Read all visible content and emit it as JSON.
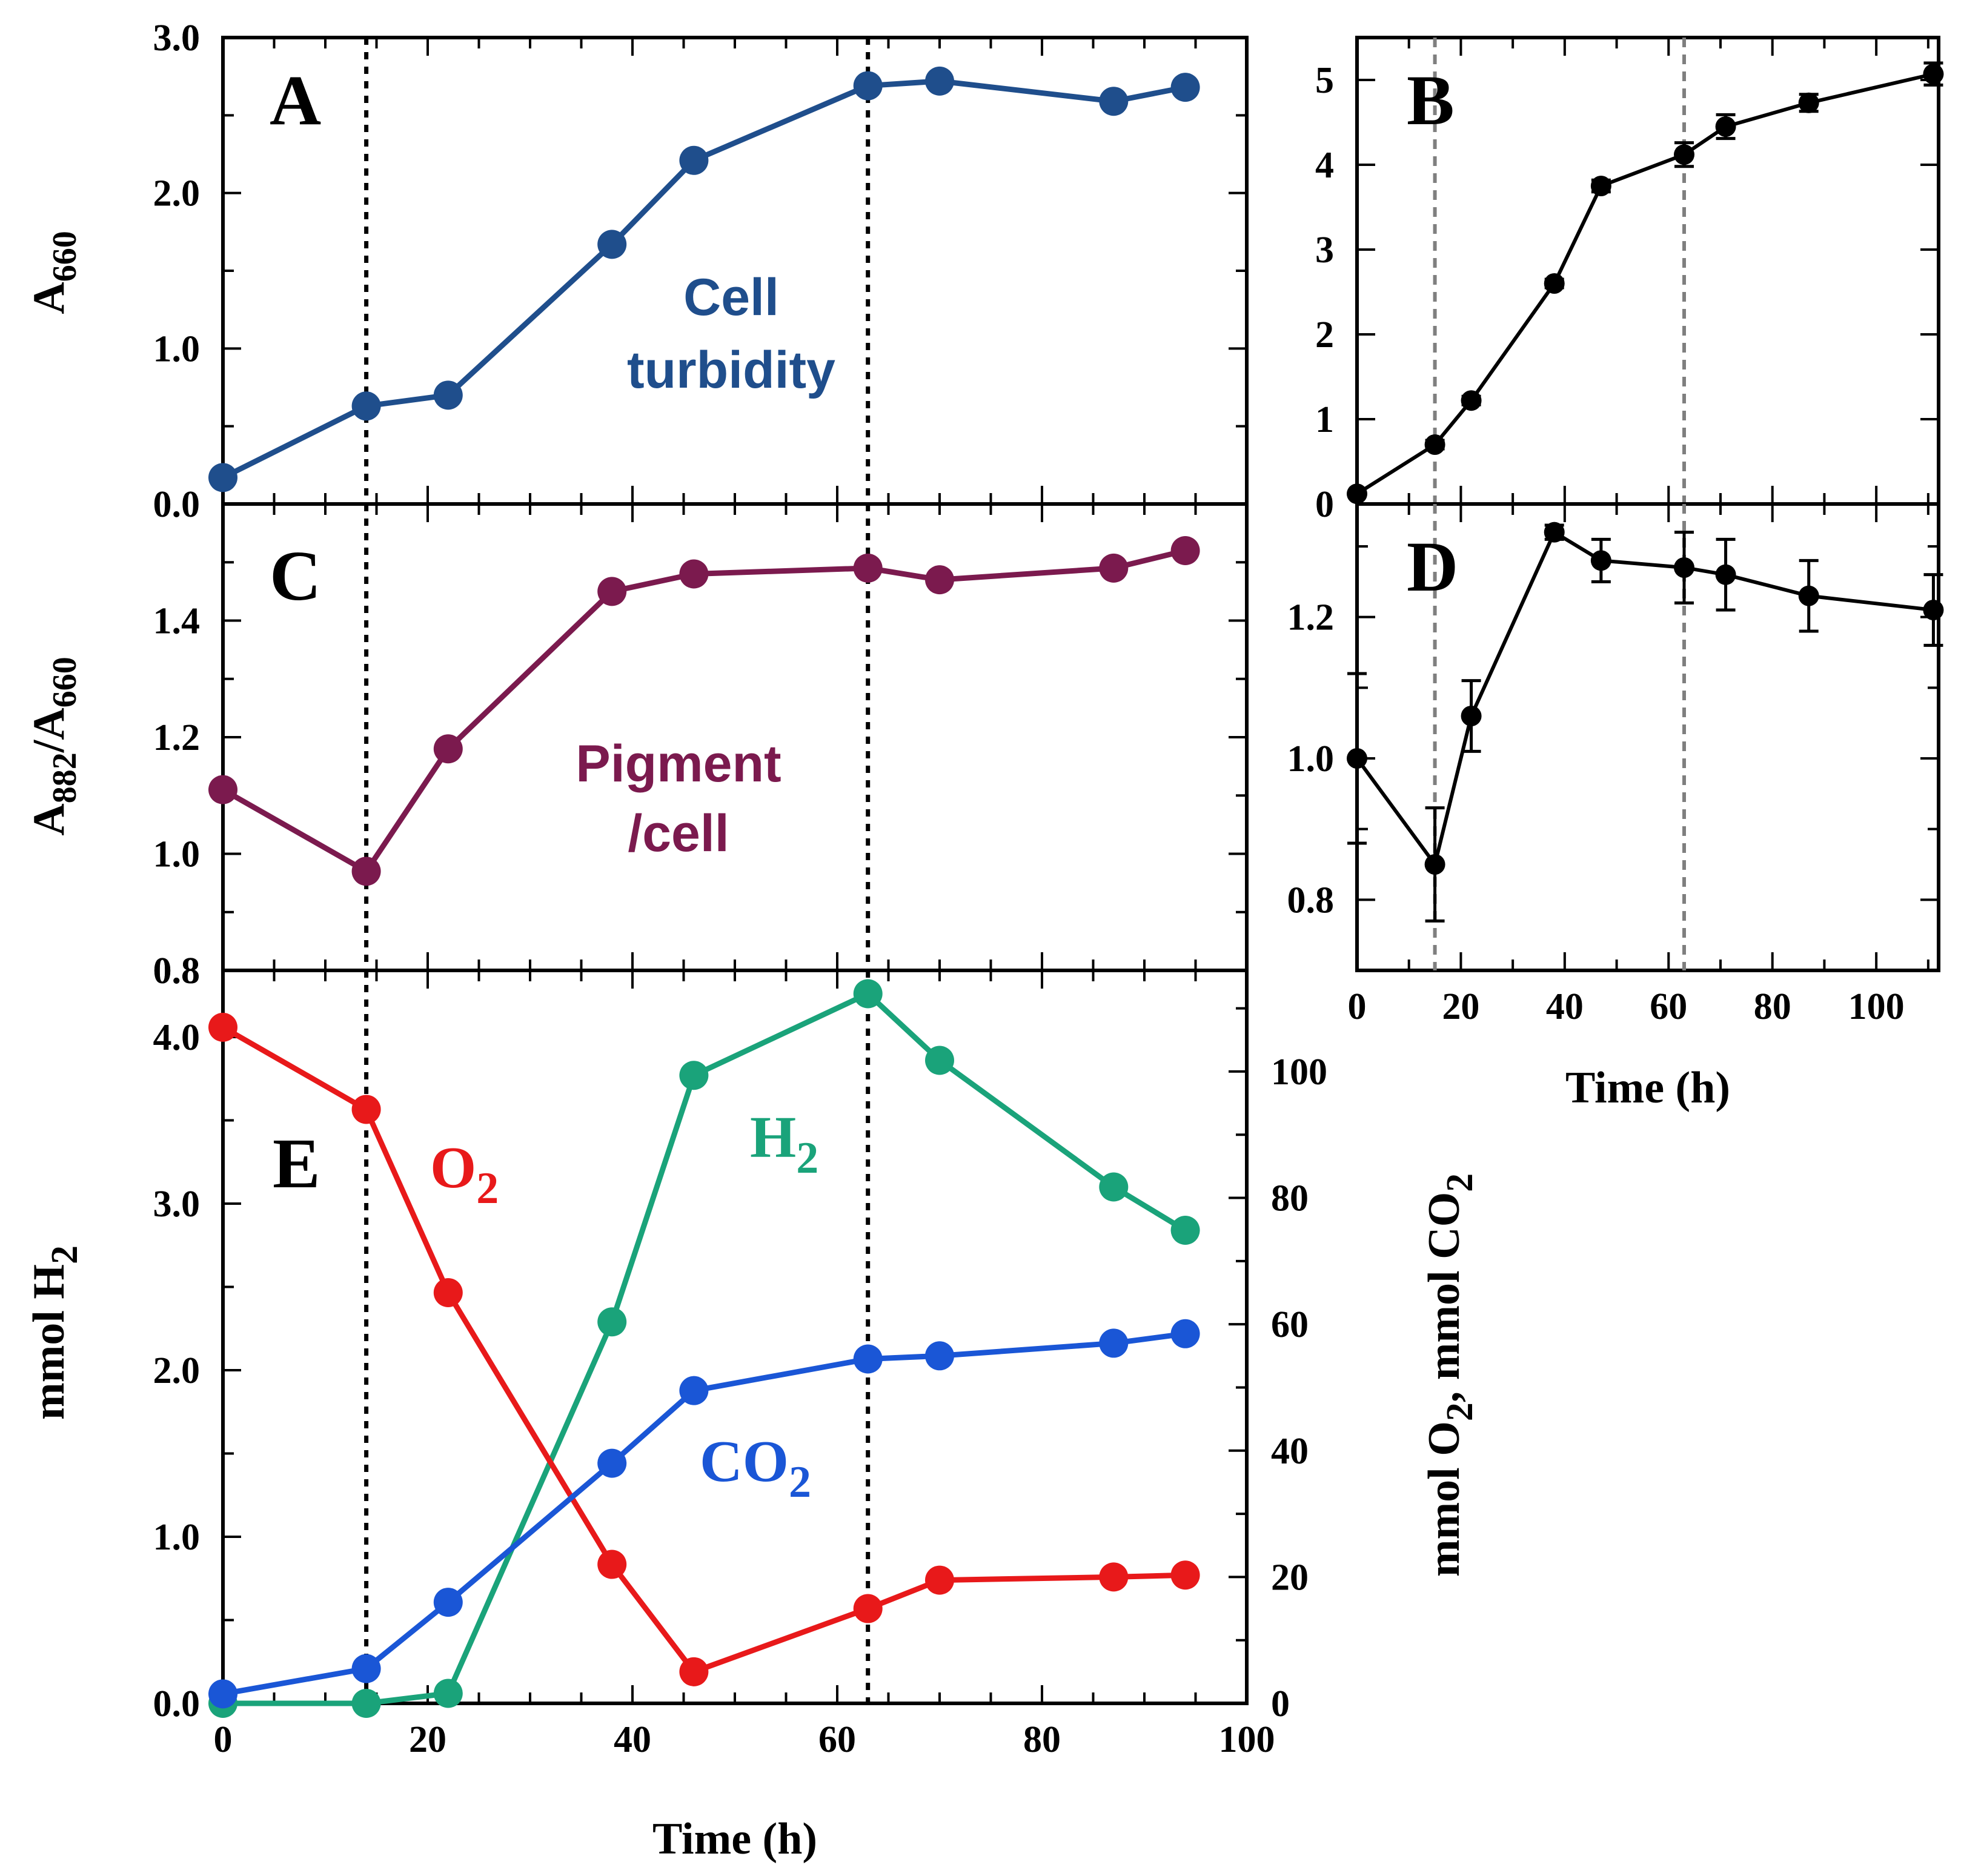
{
  "chart_data": [
    {
      "id": "A",
      "type": "line",
      "panel_label": "A",
      "x": [
        0,
        14,
        22,
        38,
        46,
        63,
        70,
        87,
        94
      ],
      "series": [
        {
          "name": "Cell turbidity",
          "color": "#1f4e8c",
          "values": [
            0.17,
            0.63,
            0.7,
            1.67,
            2.21,
            2.69,
            2.72,
            2.59,
            2.68
          ]
        }
      ],
      "xlim": [
        0,
        100
      ],
      "ylim": [
        0,
        3
      ],
      "yticks": [
        "0.0",
        "1.0",
        "2.0",
        "3.0"
      ],
      "ylabel": "A",
      "ylabel_sub": "660",
      "annotation": [
        "Cell",
        "turbidity"
      ],
      "vlines": [
        14,
        63
      ]
    },
    {
      "id": "B",
      "type": "line",
      "panel_label": "B",
      "x": [
        0,
        15,
        22,
        38,
        47,
        63,
        71,
        87,
        111
      ],
      "series": [
        {
          "name": "B",
          "color": "#000000",
          "values": [
            0.12,
            0.7,
            1.22,
            2.6,
            3.75,
            4.12,
            4.45,
            4.73,
            5.07
          ],
          "errors": [
            0.02,
            0.05,
            0.05,
            0.05,
            0.07,
            0.14,
            0.14,
            0.1,
            0.13
          ]
        }
      ],
      "xlim": [
        0,
        112
      ],
      "ylim": [
        0,
        5.5
      ],
      "yticks": [
        "0",
        "1",
        "2",
        "3",
        "4",
        "5"
      ],
      "vlines": [
        15,
        63
      ]
    },
    {
      "id": "C",
      "type": "line",
      "panel_label": "C",
      "x": [
        0,
        14,
        22,
        38,
        46,
        63,
        70,
        87,
        94
      ],
      "series": [
        {
          "name": "Pigment/cell",
          "color": "#7b1a4e",
          "values": [
            1.11,
            0.97,
            1.18,
            1.45,
            1.48,
            1.49,
            1.47,
            1.49,
            1.52
          ]
        }
      ],
      "xlim": [
        0,
        100
      ],
      "ylim": [
        0.8,
        1.6
      ],
      "yticks": [
        "0.8",
        "1.0",
        "1.2",
        "1.4"
      ],
      "ylabel": "A",
      "ylabel_sub": "882",
      "ylabel_mid": "/A",
      "ylabel_sub2": "660",
      "annotation": [
        "Pigment",
        "/cell"
      ],
      "vlines": [
        14,
        63
      ]
    },
    {
      "id": "D",
      "type": "line",
      "panel_label": "D",
      "x": [
        0,
        15,
        22,
        38,
        47,
        63,
        71,
        87,
        111
      ],
      "series": [
        {
          "name": "D",
          "color": "#000000",
          "values": [
            1.0,
            0.85,
            1.06,
            1.32,
            1.28,
            1.27,
            1.26,
            1.23,
            1.21
          ],
          "errors": [
            0.12,
            0.08,
            0.05,
            0.01,
            0.03,
            0.05,
            0.05,
            0.05,
            0.05
          ]
        }
      ],
      "xlim": [
        0,
        112
      ],
      "ylim": [
        0.7,
        1.36
      ],
      "yticks": [
        "0.8",
        "1.0",
        "1.2"
      ],
      "xticks": [
        "0",
        "20",
        "40",
        "60",
        "80",
        "100"
      ],
      "xlabel": "Time (h)",
      "vlines": [
        15,
        63
      ]
    },
    {
      "id": "E",
      "type": "line",
      "panel_label": "E",
      "x": [
        0,
        14,
        22,
        38,
        46,
        63,
        70,
        87,
        94
      ],
      "series": [
        {
          "name": "H2",
          "label": "H",
          "label_sub": "2",
          "axis": "left",
          "color": "#1aa37a",
          "values": [
            0.0,
            0.0,
            0.06,
            2.29,
            3.77,
            4.26,
            3.86,
            3.1,
            2.84
          ]
        },
        {
          "name": "O2",
          "label": "O",
          "label_sub": "2",
          "axis": "right",
          "color": "#e8191a",
          "values": [
            107,
            94,
            65,
            22,
            5,
            15,
            19.5,
            20,
            20.3
          ]
        },
        {
          "name": "CO2",
          "label": "CO",
          "label_sub": "2",
          "axis": "right",
          "color": "#1a56d6",
          "values": [
            1.5,
            5.5,
            16,
            38,
            49.5,
            54.5,
            55,
            57,
            58.5
          ]
        }
      ],
      "xlim": [
        0,
        100
      ],
      "ylim": [
        0,
        4.4
      ],
      "ylim_right": [
        0,
        116
      ],
      "yticks": [
        "0.0",
        "1.0",
        "2.0",
        "3.0",
        "4.0"
      ],
      "yticks_right": [
        "0",
        "20",
        "40",
        "60",
        "80",
        "100"
      ],
      "xticks": [
        "0",
        "20",
        "40",
        "60",
        "80",
        "100"
      ],
      "xlabel": "Time (h)",
      "ylabel": "mmol H",
      "ylabel_sub": "2",
      "ylabel_right": "mmol O",
      "ylabel_right_sub": "2",
      "ylabel_right_mid": ", mmol CO",
      "ylabel_right_sub2": "2",
      "vlines": [
        14,
        63
      ]
    }
  ]
}
